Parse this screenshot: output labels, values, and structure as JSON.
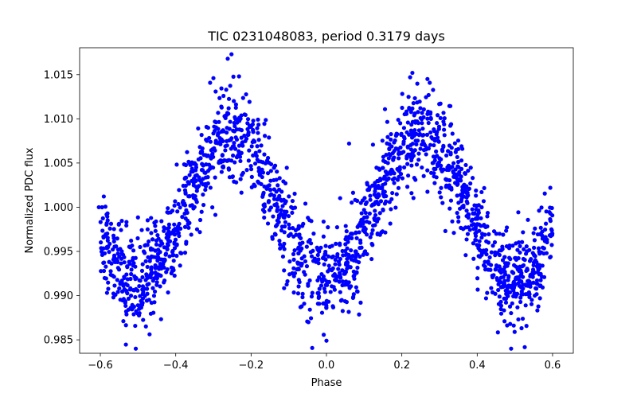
{
  "colors": {
    "points": "#0000ff",
    "axes": "#000000",
    "background": "#ffffff"
  },
  "chart_data": {
    "type": "scatter",
    "title": "TIC 0231048083, period 0.3179 days",
    "xlabel": "Phase",
    "ylabel": "Normalized PDC flux",
    "xlim": [
      -0.655,
      0.655
    ],
    "ylim": [
      0.98348,
      1.01804
    ],
    "x_ticks": [
      -0.6,
      -0.4,
      -0.2,
      0.0,
      0.2,
      0.4,
      0.6
    ],
    "x_tick_labels": [
      "−0.6",
      "−0.4",
      "−0.2",
      "0.0",
      "0.2",
      "0.4",
      "0.6"
    ],
    "y_ticks": [
      0.985,
      0.99,
      0.995,
      1.0,
      1.005,
      1.01,
      1.015
    ],
    "y_tick_labels": [
      "0.985",
      "0.990",
      "0.995",
      "1.000",
      "1.005",
      "1.010",
      "1.015"
    ],
    "grid": false,
    "series": [
      {
        "description_of_model": "phase-folded flux, two peaks near phase ±0.25 and minima near phase 0 and ±0.5",
        "model": {
          "period_days": 0.3179,
          "mean_flux": 1.0,
          "amplitude": 0.0085,
          "cycles_per_unit_phase": 2,
          "scatter": 0.0027,
          "phase_range": [
            -0.6,
            0.6
          ],
          "n_points": 1900
        },
        "selected_points": [
          [
            -0.252,
            1.0173
          ],
          [
            -0.262,
            1.0168
          ],
          [
            -0.232,
            1.0148
          ],
          [
            -0.3,
            1.0146
          ],
          [
            0.228,
            1.0152
          ],
          [
            0.222,
            1.0147
          ],
          [
            0.268,
            1.0145
          ],
          [
            -0.506,
            0.984
          ],
          [
            0.49,
            0.984
          ],
          [
            0.0,
            0.9849
          ],
          [
            0.06,
            1.0072
          ],
          [
            -0.604,
            1.0
          ],
          [
            0.594,
            1.0022
          ]
        ]
      }
    ]
  }
}
